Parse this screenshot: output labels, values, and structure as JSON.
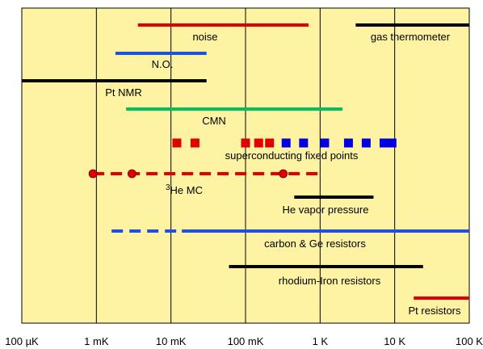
{
  "chart_data": {
    "type": "range-bar",
    "x_scale": "log10",
    "x_unit": "K",
    "xlim": [
      0.0001,
      100
    ],
    "grid": true,
    "background": "#fdf3a3",
    "tick_labels": [
      {
        "value": 0.0001,
        "label": "100 µK"
      },
      {
        "value": 0.001,
        "label": "1 mK"
      },
      {
        "value": 0.01,
        "label": "10 mK"
      },
      {
        "value": 0.1,
        "label": "100 mK"
      },
      {
        "value": 1,
        "label": "1 K"
      },
      {
        "value": 10,
        "label": "10 K"
      },
      {
        "value": 100,
        "label": "100 K"
      }
    ],
    "ranges": [
      {
        "name": "noise",
        "color": "#e00000",
        "segments": [
          {
            "from": 0.0036,
            "to": 0.7,
            "style": "solid"
          }
        ]
      },
      {
        "name": "gas thermometer",
        "color": "#000000",
        "segments": [
          {
            "from": 3,
            "to": 100,
            "style": "solid"
          }
        ]
      },
      {
        "name": "N.O.",
        "color": "#1f4fe0",
        "segments": [
          {
            "from": 0.0018,
            "to": 0.03,
            "style": "solid"
          }
        ]
      },
      {
        "name": "Pt NMR",
        "color": "#000000",
        "segments": [
          {
            "from": 0.0001,
            "to": 0.03,
            "style": "solid"
          }
        ]
      },
      {
        "name": "CMN",
        "color": "#00c060",
        "segments": [
          {
            "from": 0.0025,
            "to": 2,
            "style": "solid"
          }
        ]
      },
      {
        "name": "superconducting fixed points",
        "markers": [
          {
            "value": 0.012,
            "color": "#e00000"
          },
          {
            "value": 0.021,
            "color": "#e00000"
          },
          {
            "value": 0.1,
            "color": "#e00000"
          },
          {
            "value": 0.15,
            "color": "#e00000"
          },
          {
            "value": 0.21,
            "color": "#e00000"
          },
          {
            "value": 0.35,
            "color": "#0000e0"
          },
          {
            "value": 0.6,
            "color": "#0000e0"
          },
          {
            "value": 1.15,
            "color": "#0000e0"
          },
          {
            "value": 2.4,
            "color": "#0000e0"
          },
          {
            "value": 4.15,
            "color": "#0000e0"
          },
          {
            "value": 7.2,
            "color": "#0000e0"
          },
          {
            "value": 9.2,
            "color": "#0000e0"
          }
        ]
      },
      {
        "name": "³He MC",
        "label_prefix": "3",
        "label_text": "He MC",
        "color": "#e00000",
        "segments": [
          {
            "from": 0.0009,
            "to": 1,
            "style": "dashed"
          }
        ],
        "points": [
          0.0009,
          0.003,
          0.32
        ]
      },
      {
        "name": "He vapor pressure",
        "color": "#000000",
        "segments": [
          {
            "from": 0.45,
            "to": 5.2,
            "style": "solid"
          }
        ]
      },
      {
        "name": "carbon & Ge resistors",
        "color": "#1f4fe0",
        "segments": [
          {
            "from": 0.0016,
            "to": 0.014,
            "style": "dashed"
          },
          {
            "from": 0.014,
            "to": 100,
            "style": "solid"
          }
        ]
      },
      {
        "name": "rhodium-Iron resistors",
        "color": "#000000",
        "segments": [
          {
            "from": 0.06,
            "to": 24,
            "style": "solid"
          }
        ]
      },
      {
        "name": "Pt resistors",
        "color": "#e00000",
        "segments": [
          {
            "from": 18,
            "to": 100,
            "style": "solid"
          }
        ]
      }
    ]
  }
}
